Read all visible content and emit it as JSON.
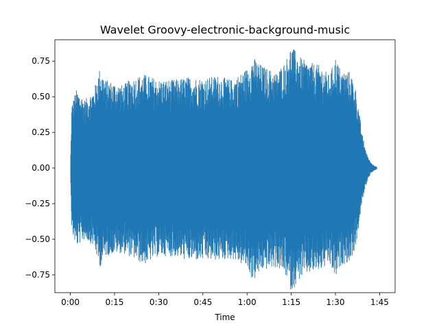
{
  "chart_data": {
    "type": "line",
    "title": "Wavelet Groovy-electronic-background-music",
    "xlabel": "Time",
    "ylabel": "",
    "x_unit": "seconds",
    "xlim": [
      -5.25,
      110.25
    ],
    "ylim": [
      -0.875,
      0.9
    ],
    "x_ticks": [
      {
        "value": 0,
        "label": "0:00"
      },
      {
        "value": 15,
        "label": "0:15"
      },
      {
        "value": 30,
        "label": "0:30"
      },
      {
        "value": 45,
        "label": "0:45"
      },
      {
        "value": 60,
        "label": "1:00"
      },
      {
        "value": 75,
        "label": "1:15"
      },
      {
        "value": 90,
        "label": "1:30"
      },
      {
        "value": 105,
        "label": "1:45"
      }
    ],
    "y_ticks": [
      {
        "value": -0.75,
        "label": "−0.75"
      },
      {
        "value": -0.5,
        "label": "−0.50"
      },
      {
        "value": -0.25,
        "label": "−0.25"
      },
      {
        "value": 0.0,
        "label": "0.00"
      },
      {
        "value": 0.25,
        "label": "0.25"
      },
      {
        "value": 0.5,
        "label": "0.50"
      },
      {
        "value": 0.75,
        "label": "0.75"
      }
    ],
    "grid": false,
    "legend": "none",
    "series": [
      {
        "color": "#1f77b4",
        "envelope": {
          "time": [
            0,
            0.5,
            2,
            5,
            8,
            10,
            12,
            15,
            18,
            20,
            25,
            30,
            35,
            40,
            45,
            50,
            55,
            60,
            62,
            65,
            70,
            73,
            75,
            78,
            80,
            85,
            88,
            90,
            92,
            95,
            97,
            98,
            99,
            100,
            101,
            102,
            103,
            104
          ],
          "upper": [
            0.0,
            0.45,
            0.55,
            0.48,
            0.55,
            0.7,
            0.62,
            0.6,
            0.58,
            0.62,
            0.66,
            0.62,
            0.62,
            0.64,
            0.63,
            0.65,
            0.62,
            0.7,
            0.78,
            0.72,
            0.67,
            0.75,
            0.86,
            0.78,
            0.75,
            0.72,
            0.65,
            0.78,
            0.68,
            0.68,
            0.55,
            0.4,
            0.25,
            0.15,
            0.08,
            0.04,
            0.02,
            0.01
          ],
          "lower": [
            0.0,
            -0.45,
            -0.55,
            -0.5,
            -0.55,
            -0.7,
            -0.62,
            -0.6,
            -0.6,
            -0.62,
            -0.68,
            -0.62,
            -0.62,
            -0.65,
            -0.65,
            -0.65,
            -0.64,
            -0.7,
            -0.8,
            -0.72,
            -0.7,
            -0.75,
            -0.87,
            -0.78,
            -0.75,
            -0.72,
            -0.68,
            -0.78,
            -0.68,
            -0.66,
            -0.55,
            -0.4,
            -0.25,
            -0.15,
            -0.08,
            -0.04,
            -0.02,
            -0.01
          ]
        }
      }
    ]
  }
}
